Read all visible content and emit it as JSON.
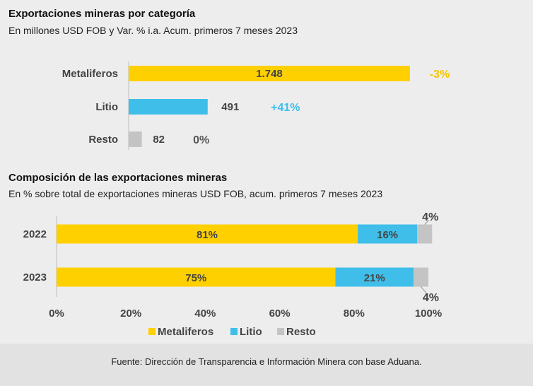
{
  "colors": {
    "metaliferos": "#FFD000",
    "litio": "#40BEEA",
    "resto": "#C4C4C4",
    "negative": "#F5C400",
    "positive": "#40BEEA",
    "neutral": "#555555",
    "background": "#EDEDED",
    "footer_bg": "#E2E2E2"
  },
  "chart_data": [
    {
      "type": "bar",
      "orientation": "horizontal",
      "title": "Exportaciones mineras por categoría",
      "subtitle": "En millones USD FOB y Var. % i.a. Acum. primeros 7 meses 2023",
      "categories": [
        "Metaliferos",
        "Litio",
        "Resto"
      ],
      "values": [
        1748,
        491,
        82
      ],
      "value_labels": [
        "1.748",
        "491",
        "82"
      ],
      "changes": [
        "-3%",
        "+41%",
        "0%"
      ],
      "xlim": [
        0,
        1748
      ]
    },
    {
      "type": "bar",
      "orientation": "horizontal",
      "stacked": true,
      "title": "Composición de las exportaciones mineras",
      "subtitle": "En % sobre total de exportaciones mineras USD FOB, acum. primeros 7 meses 2023",
      "categories": [
        "2022",
        "2023"
      ],
      "series": [
        {
          "name": "Metaliferos",
          "values": [
            81,
            75
          ],
          "labels": [
            "81%",
            "75%"
          ]
        },
        {
          "name": "Litio",
          "values": [
            16,
            21
          ],
          "labels": [
            "16%",
            "21%"
          ]
        },
        {
          "name": "Resto",
          "values": [
            4,
            4
          ],
          "labels": [
            "4%",
            "4%"
          ]
        }
      ],
      "xticks": [
        "0%",
        "20%",
        "40%",
        "60%",
        "80%",
        "100%"
      ],
      "xlim": [
        0,
        100
      ],
      "legend": [
        "Metaliferos",
        "Litio",
        "Resto"
      ],
      "legend_position": "bottom"
    }
  ],
  "footer": {
    "source": "Fuente: Dirección de Transparencia e Información Minera con base Aduana."
  }
}
